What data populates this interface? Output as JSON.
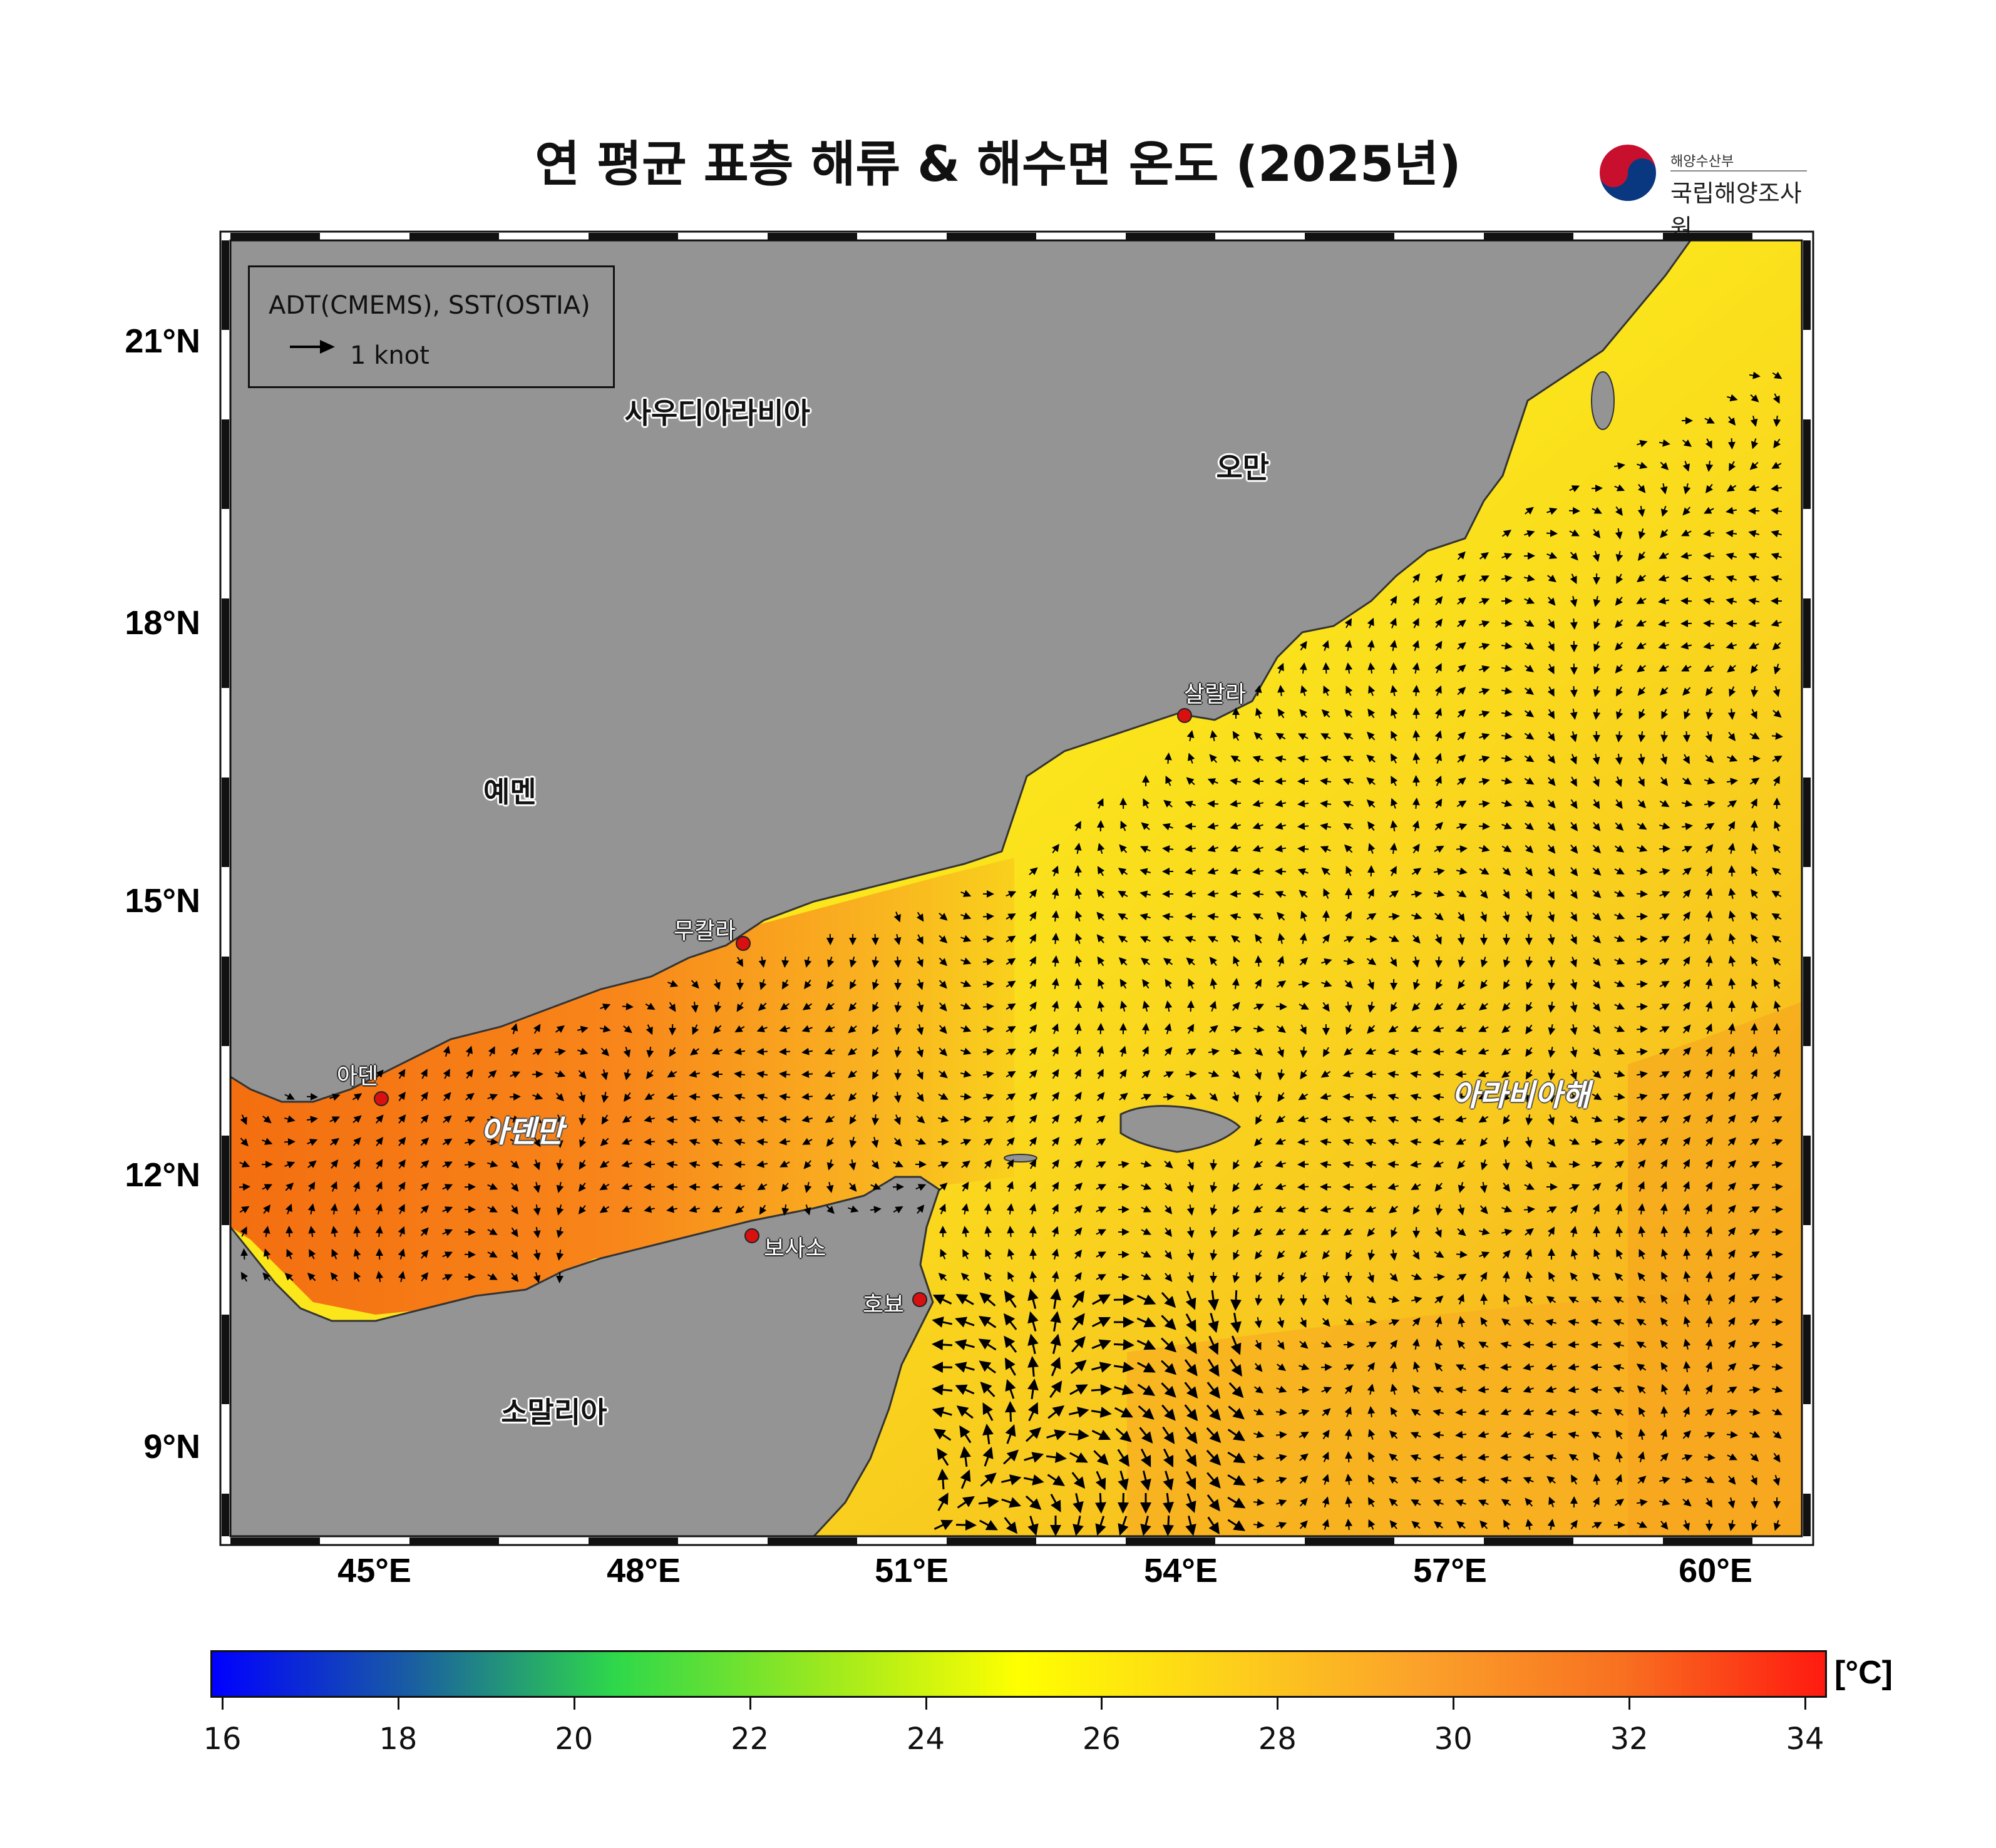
{
  "title": "연 평균 표층 해류 & 해수면 온도 (2025년)",
  "logo": {
    "top_text": "해양수산부",
    "main_text": "국립해양조사원",
    "emblem": "korea-government-emblem"
  },
  "legend": {
    "source": "ADT(CMEMS), SST(OSTIA)",
    "arrow_label": "1 knot",
    "arrow_icon": "right-arrow-icon"
  },
  "axes": {
    "x_ticks": [
      "45°E",
      "48°E",
      "51°E",
      "54°E",
      "57°E",
      "60°E"
    ],
    "y_ticks": [
      "21°N",
      "18°N",
      "15°N",
      "12°N",
      "9°N"
    ],
    "lon_range": [
      43.3,
      61.1
    ],
    "lat_range": [
      8.0,
      22.2
    ]
  },
  "places": {
    "countries": [
      {
        "name": "사우디아라비아",
        "lon": 48.9,
        "lat": 20.35
      },
      {
        "name": "오만",
        "lon": 55.6,
        "lat": 19.75
      },
      {
        "name": "예멘",
        "lon": 47.3,
        "lat": 16.2
      },
      {
        "name": "소말리아",
        "lon": 47.5,
        "lat": 9.4
      }
    ],
    "cities": [
      {
        "name": "살랄라",
        "lon": 54.1,
        "lat": 17.0
      },
      {
        "name": "무칼라",
        "lon": 49.1,
        "lat": 14.5
      },
      {
        "name": "아덴",
        "lon": 45.0,
        "lat": 12.8
      },
      {
        "name": "보사소",
        "lon": 49.2,
        "lat": 11.3
      },
      {
        "name": "호뵤",
        "lon": 51.1,
        "lat": 10.6
      }
    ],
    "seas": [
      {
        "name": "아덴만",
        "lon": 46.7,
        "lat": 12.5
      },
      {
        "name": "아라비아해",
        "lon": 57.7,
        "lat": 12.9
      }
    ]
  },
  "colorbar": {
    "unit": "[°C]",
    "ticks": [
      "16",
      "18",
      "20",
      "22",
      "24",
      "26",
      "28",
      "30",
      "32",
      "34"
    ],
    "range": [
      16,
      34
    ],
    "stops": [
      "#0000ff",
      "#1a5fa0",
      "#2ed84a",
      "#98e820",
      "#ffff00",
      "#fdd21a",
      "#fba12a",
      "#f87020",
      "#ff1a10"
    ]
  },
  "colors": {
    "land": "#949494",
    "coast": "#333333",
    "sst_gulf": "#f88a12",
    "sst_sea": "#f7e21a",
    "sst_north": "#fff000"
  }
}
